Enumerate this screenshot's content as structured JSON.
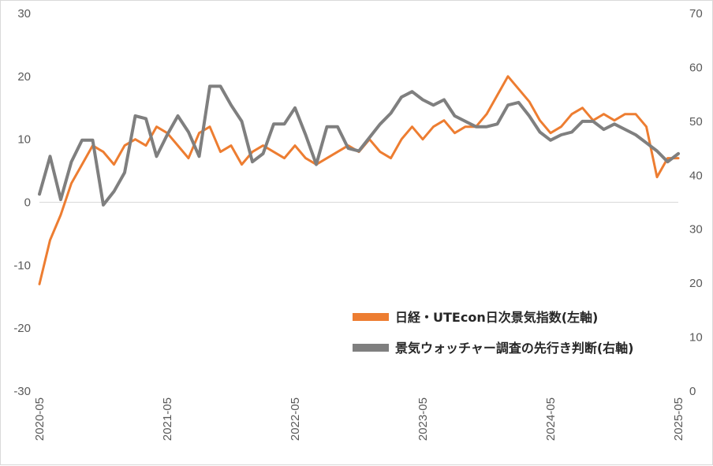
{
  "chart_data": {
    "type": "line",
    "title": "",
    "xlabel": "",
    "ylabel": "",
    "x_ticks": [
      "2020-05",
      "2021-05",
      "2022-05",
      "2023-05",
      "2024-05",
      "2025-05"
    ],
    "x_range": [
      "2020-05",
      "2025-05"
    ],
    "y_left": {
      "range": [
        -30,
        30
      ],
      "ticks": [
        -30,
        -20,
        -10,
        0,
        10,
        20,
        30
      ]
    },
    "y_right": {
      "range": [
        0,
        70
      ],
      "ticks": [
        0,
        10,
        20,
        30,
        40,
        50,
        60,
        70
      ]
    },
    "grid": false,
    "zero_line_left_axis": true,
    "legend_position": "bottom-right",
    "series": [
      {
        "name": "日経・UTEcon日次景気指数(左軸)",
        "axis": "left",
        "color": "#ED7D31",
        "x": [
          "2020-05",
          "2020-06",
          "2020-07",
          "2020-08",
          "2020-09",
          "2020-10",
          "2020-11",
          "2020-12",
          "2021-01",
          "2021-02",
          "2021-03",
          "2021-04",
          "2021-05",
          "2021-06",
          "2021-07",
          "2021-08",
          "2021-09",
          "2021-10",
          "2021-11",
          "2021-12",
          "2022-01",
          "2022-02",
          "2022-03",
          "2022-04",
          "2022-05",
          "2022-06",
          "2022-07",
          "2022-08",
          "2022-09",
          "2022-10",
          "2022-11",
          "2022-12",
          "2023-01",
          "2023-02",
          "2023-03",
          "2023-04",
          "2023-05",
          "2023-06",
          "2023-07",
          "2023-08",
          "2023-09",
          "2023-10",
          "2023-11",
          "2023-12",
          "2024-01",
          "2024-02",
          "2024-03",
          "2024-04",
          "2024-05",
          "2024-06",
          "2024-07",
          "2024-08",
          "2024-09",
          "2024-10",
          "2024-11",
          "2024-12",
          "2025-01",
          "2025-02",
          "2025-03",
          "2025-04",
          "2025-05"
        ],
        "y": [
          -13,
          -6,
          -2,
          3,
          6,
          9,
          8,
          6,
          9,
          10,
          9,
          12,
          11,
          9,
          7,
          11,
          12,
          8,
          9,
          6,
          8,
          9,
          8,
          7,
          9,
          7,
          6,
          7,
          8,
          9,
          8,
          10,
          8,
          7,
          10,
          12,
          10,
          12,
          13,
          11,
          12,
          12,
          14,
          17,
          20,
          18,
          16,
          13,
          11,
          12,
          14,
          15,
          13,
          14,
          13,
          14,
          14,
          12,
          4,
          7,
          7
        ]
      },
      {
        "name": "景気ウォッチャー調査の先行き判断(右軸)",
        "axis": "right",
        "color": "#7F7F7F",
        "x": [
          "2020-05",
          "2020-06",
          "2020-07",
          "2020-08",
          "2020-09",
          "2020-10",
          "2020-11",
          "2020-12",
          "2021-01",
          "2021-02",
          "2021-03",
          "2021-04",
          "2021-05",
          "2021-06",
          "2021-07",
          "2021-08",
          "2021-09",
          "2021-10",
          "2021-11",
          "2021-12",
          "2022-01",
          "2022-02",
          "2022-03",
          "2022-04",
          "2022-05",
          "2022-06",
          "2022-07",
          "2022-08",
          "2022-09",
          "2022-10",
          "2022-11",
          "2022-12",
          "2023-01",
          "2023-02",
          "2023-03",
          "2023-04",
          "2023-05",
          "2023-06",
          "2023-07",
          "2023-08",
          "2023-09",
          "2023-10",
          "2023-11",
          "2023-12",
          "2024-01",
          "2024-02",
          "2024-03",
          "2024-04",
          "2024-05",
          "2024-06",
          "2024-07",
          "2024-08",
          "2024-09",
          "2024-10",
          "2024-11",
          "2024-12",
          "2025-01",
          "2025-02",
          "2025-03",
          "2025-04",
          "2025-05"
        ],
        "y": [
          36.5,
          43.5,
          35.5,
          42.5,
          46.5,
          46.5,
          34.5,
          37,
          40.5,
          51,
          50.5,
          43.5,
          47.5,
          51,
          48,
          43.5,
          56.5,
          56.5,
          53,
          50,
          42.5,
          44,
          49.5,
          49.5,
          52.5,
          47.5,
          42,
          49,
          49,
          45,
          44.5,
          47,
          49.5,
          51.5,
          54.5,
          55.5,
          54,
          53,
          54,
          51,
          50,
          49,
          49,
          49.5,
          53,
          53.5,
          51,
          48,
          46.5,
          47.5,
          48,
          50,
          50,
          48.5,
          49.5,
          48.5,
          47.5,
          46,
          44.5,
          42.5,
          44
        ]
      }
    ]
  }
}
